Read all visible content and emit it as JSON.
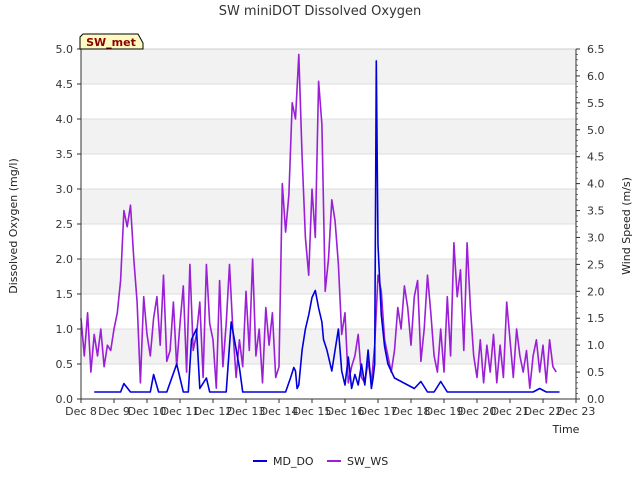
{
  "chart_data": {
    "type": "line",
    "title": "SW miniDOT Dissolved Oxygen",
    "site_tag": "SW_met",
    "xlabel": "Time",
    "ylabel_left": "Dissolved Oxygen (mg/l)",
    "ylabel_right": "Wind Speed (m/s)",
    "x_ticks": [
      "Dec 8",
      "Dec 9",
      "Dec 10",
      "Dec 11",
      "Dec 12",
      "Dec 13",
      "Dec 14",
      "Dec 15",
      "Dec 16",
      "Dec 17",
      "Dec 18",
      "Dec 19",
      "Dec 20",
      "Dec 21",
      "Dec 22",
      "Dec 23"
    ],
    "xlim_days": [
      8,
      23
    ],
    "ylim_left": [
      0,
      5.0
    ],
    "ylim_right": [
      0,
      6.5
    ],
    "y_ticks_left": [
      "0.0",
      "0.5",
      "1.0",
      "1.5",
      "2.0",
      "2.5",
      "3.0",
      "3.5",
      "4.0",
      "4.5",
      "5.0"
    ],
    "y_ticks_right": [
      "0.0",
      "0.5",
      "1.0",
      "1.5",
      "2.0",
      "2.5",
      "3.0",
      "3.5",
      "4.0",
      "4.5",
      "5.0",
      "5.5",
      "6.0",
      "6.5"
    ],
    "background_bands": "alternating grey / white horizontal bands",
    "legend_position": "bottom-center",
    "series": [
      {
        "name": "MD_DO",
        "axis": "left",
        "color": "#0000dd",
        "x": [
          8.4,
          8.6,
          8.9,
          9.2,
          9.3,
          9.5,
          9.7,
          9.9,
          10.1,
          10.2,
          10.35,
          10.45,
          10.6,
          10.9,
          11.1,
          11.2,
          11.25,
          11.35,
          11.5,
          11.6,
          11.8,
          11.9,
          12.0,
          12.1,
          12.2,
          12.4,
          12.55,
          12.65,
          12.8,
          12.9,
          13.0,
          13.1,
          13.2,
          13.4,
          13.6,
          13.8,
          14.0,
          14.2,
          14.35,
          14.45,
          14.5,
          14.55,
          14.6,
          14.7,
          14.8,
          14.9,
          15.0,
          15.1,
          15.2,
          15.3,
          15.35,
          15.45,
          15.6,
          15.8,
          15.9,
          16.0,
          16.1,
          16.2,
          16.3,
          16.4,
          16.5,
          16.6,
          16.7,
          16.8,
          16.85,
          16.9,
          16.95,
          17.0,
          17.1,
          17.2,
          17.3,
          17.5,
          17.7,
          17.9,
          18.1,
          18.3,
          18.5,
          18.7,
          18.9,
          19.1,
          19.3,
          19.5,
          19.7,
          19.9,
          20.1,
          20.3,
          20.5,
          20.7,
          20.9,
          21.1,
          21.3,
          21.5,
          21.7,
          21.9,
          22.1,
          22.3,
          22.5
        ],
        "y": [
          0.1,
          0.1,
          0.1,
          0.1,
          0.22,
          0.1,
          0.1,
          0.1,
          0.1,
          0.35,
          0.1,
          0.1,
          0.1,
          0.5,
          0.1,
          0.1,
          0.1,
          0.85,
          1.0,
          0.15,
          0.3,
          0.1,
          0.1,
          0.1,
          0.1,
          0.1,
          1.1,
          0.85,
          0.45,
          0.1,
          0.1,
          0.1,
          0.1,
          0.1,
          0.1,
          0.1,
          0.1,
          0.1,
          0.3,
          0.45,
          0.4,
          0.15,
          0.2,
          0.7,
          1.0,
          1.2,
          1.45,
          1.55,
          1.3,
          1.1,
          0.85,
          0.7,
          0.4,
          1.0,
          0.4,
          0.2,
          0.6,
          0.15,
          0.35,
          0.2,
          0.5,
          0.2,
          0.7,
          0.15,
          0.3,
          0.5,
          4.83,
          2.2,
          1.2,
          0.75,
          0.5,
          0.3,
          0.25,
          0.2,
          0.15,
          0.25,
          0.1,
          0.1,
          0.25,
          0.1,
          0.1,
          0.1,
          0.1,
          0.1,
          0.1,
          0.1,
          0.1,
          0.1,
          0.1,
          0.1,
          0.1,
          0.1,
          0.1,
          0.15,
          0.1,
          0.1,
          0.1
        ]
      },
      {
        "name": "SW_WS",
        "axis": "right",
        "color": "#9a1fd6",
        "x": [
          8.0,
          8.1,
          8.2,
          8.3,
          8.4,
          8.5,
          8.6,
          8.7,
          8.8,
          8.9,
          9.0,
          9.1,
          9.2,
          9.3,
          9.4,
          9.5,
          9.6,
          9.7,
          9.8,
          9.9,
          10.0,
          10.1,
          10.2,
          10.3,
          10.4,
          10.5,
          10.6,
          10.7,
          10.8,
          10.9,
          11.0,
          11.1,
          11.2,
          11.3,
          11.4,
          11.5,
          11.6,
          11.7,
          11.8,
          11.9,
          12.0,
          12.1,
          12.2,
          12.3,
          12.4,
          12.5,
          12.6,
          12.7,
          12.8,
          12.9,
          13.0,
          13.1,
          13.2,
          13.3,
          13.4,
          13.5,
          13.6,
          13.7,
          13.8,
          13.9,
          14.0,
          14.1,
          14.2,
          14.3,
          14.4,
          14.5,
          14.6,
          14.7,
          14.8,
          14.9,
          15.0,
          15.1,
          15.2,
          15.3,
          15.4,
          15.5,
          15.6,
          15.7,
          15.8,
          15.9,
          16.0,
          16.1,
          16.2,
          16.3,
          16.4,
          16.5,
          16.6,
          16.7,
          16.8,
          16.9,
          17.0,
          17.1,
          17.2,
          17.3,
          17.4,
          17.5,
          17.6,
          17.7,
          17.8,
          17.9,
          18.0,
          18.1,
          18.2,
          18.3,
          18.4,
          18.5,
          18.6,
          18.7,
          18.8,
          18.9,
          19.0,
          19.1,
          19.2,
          19.3,
          19.4,
          19.5,
          19.6,
          19.7,
          19.8,
          19.9,
          20.0,
          20.1,
          20.2,
          20.3,
          20.4,
          20.5,
          20.6,
          20.7,
          20.8,
          20.9,
          21.0,
          21.1,
          21.2,
          21.3,
          21.4,
          21.5,
          21.6,
          21.7,
          21.8,
          21.9,
          22.0,
          22.1,
          22.2,
          22.3,
          22.4
        ],
        "y": [
          1.5,
          0.8,
          1.6,
          0.5,
          1.2,
          0.8,
          1.3,
          0.6,
          1.0,
          0.9,
          1.3,
          1.6,
          2.2,
          3.5,
          3.2,
          3.6,
          2.6,
          1.8,
          0.3,
          1.9,
          1.2,
          0.8,
          1.5,
          1.9,
          1.0,
          2.3,
          0.7,
          0.9,
          1.8,
          0.6,
          1.4,
          2.1,
          0.5,
          2.5,
          0.9,
          1.2,
          1.8,
          0.4,
          2.5,
          1.4,
          1.1,
          0.2,
          2.2,
          0.6,
          1.4,
          2.5,
          1.3,
          0.4,
          1.1,
          0.6,
          2.0,
          0.9,
          2.6,
          0.8,
          1.3,
          0.3,
          1.7,
          1.0,
          1.6,
          0.4,
          0.6,
          4.0,
          3.1,
          3.8,
          5.5,
          5.2,
          6.4,
          4.5,
          3.0,
          2.3,
          3.9,
          3.0,
          5.9,
          5.1,
          2.0,
          2.6,
          3.7,
          3.3,
          2.5,
          1.2,
          1.6,
          0.3,
          0.6,
          0.8,
          1.2,
          0.4,
          0.3,
          0.7,
          0.3,
          1.0,
          2.3,
          2.0,
          1.1,
          0.8,
          0.5,
          0.9,
          1.7,
          1.3,
          2.1,
          1.7,
          1.0,
          1.9,
          2.2,
          0.7,
          1.3,
          2.3,
          1.6,
          0.8,
          0.5,
          1.3,
          0.5,
          1.9,
          0.8,
          2.9,
          1.9,
          2.4,
          0.9,
          2.9,
          1.7,
          0.8,
          0.4,
          1.1,
          0.3,
          1.0,
          0.5,
          1.2,
          0.3,
          1.0,
          0.4,
          1.8,
          1.1,
          0.4,
          1.3,
          0.8,
          0.5,
          0.9,
          0.2,
          0.8,
          1.1,
          0.5,
          1.0,
          0.3,
          1.1,
          0.6,
          0.5
        ]
      }
    ]
  }
}
